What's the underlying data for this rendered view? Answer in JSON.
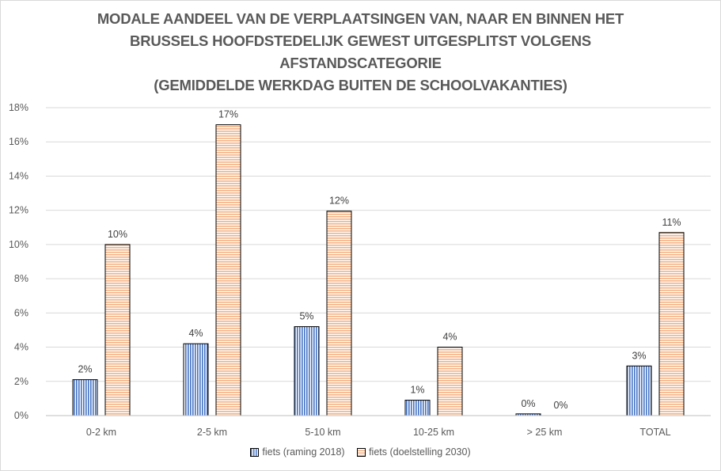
{
  "chart_data": {
    "type": "bar",
    "title_lines": [
      "MODALE AANDEEL VAN DE VERPLAATSINGEN VAN, NAAR EN BINNEN HET",
      "BRUSSELS HOOFDSTEDELIJK GEWEST UITGESPLITST VOLGENS",
      "AFSTANDSCATEGORIE",
      "(GEMIDDELDE WERKDAG BUITEN DE SCHOOLVAKANTIES)"
    ],
    "categories": [
      "0-2 km",
      "2-5 km",
      "5-10 km",
      "10-25 km",
      "> 25 km",
      "TOTAL"
    ],
    "series": [
      {
        "name": "fiets (raming 2018)",
        "values": [
          2.1,
          4.2,
          5.2,
          0.9,
          0.1,
          2.9
        ],
        "labels": [
          "2%",
          "4%",
          "5%",
          "1%",
          "0%",
          "3%"
        ],
        "color": "#4472c4"
      },
      {
        "name": "fiets (doelstelling 2030)",
        "values": [
          10.0,
          17.0,
          11.95,
          4.0,
          0.0,
          10.7
        ],
        "labels": [
          "10%",
          "17%",
          "12%",
          "4%",
          "0%",
          "11%"
        ],
        "color": "#f4b183"
      }
    ],
    "y_ticks": [
      "0%",
      "2%",
      "4%",
      "6%",
      "8%",
      "10%",
      "12%",
      "14%",
      "16%",
      "18%"
    ],
    "ylim": [
      0,
      18
    ],
    "grid": true,
    "legend_position": "bottom"
  }
}
